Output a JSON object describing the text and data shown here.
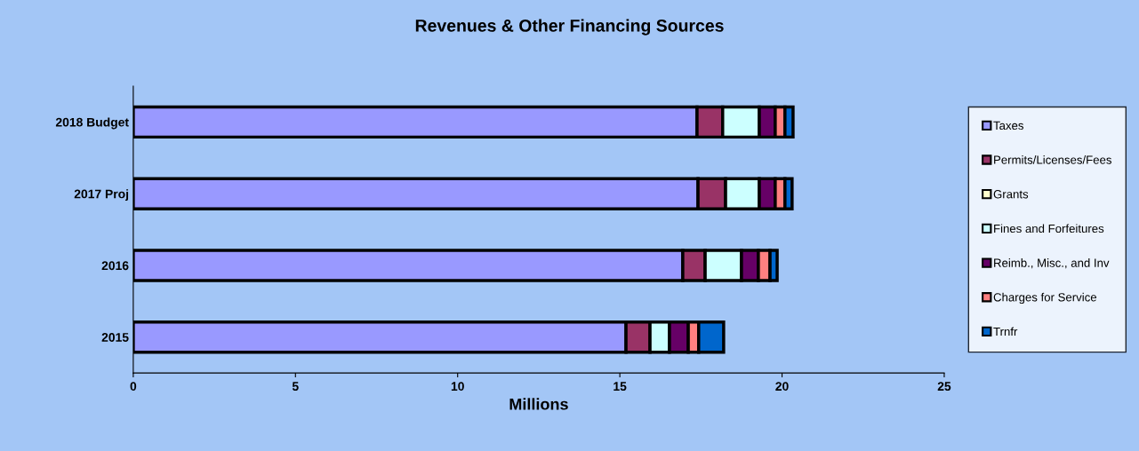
{
  "chart_data": {
    "type": "bar",
    "title": "Revenues & Other Financing Sources",
    "xlabel": "Millions",
    "orientation": "horizontal",
    "stacked": true,
    "categories": [
      "2018 Budget",
      "2017 Proj",
      "2016",
      "2015"
    ],
    "series": [
      {
        "name": "Taxes",
        "color": "#9999ff",
        "values": [
          17.38,
          17.41,
          16.94,
          15.19
        ]
      },
      {
        "name": "Permits/Licenses/Fees",
        "color": "#993366",
        "values": [
          0.79,
          0.85,
          0.69,
          0.74
        ]
      },
      {
        "name": "Grants",
        "color": "#ffffcc",
        "values": [
          0,
          0,
          0,
          0
        ]
      },
      {
        "name": "Fines and Forfeitures",
        "color": "#ccffff",
        "values": [
          1.13,
          1.04,
          1.12,
          0.6
        ]
      },
      {
        "name": "Reimb., Misc., and Inv",
        "color": "#660066",
        "values": [
          0.49,
          0.49,
          0.52,
          0.58
        ]
      },
      {
        "name": "Charges for Service",
        "color": "#ff8080",
        "values": [
          0.3,
          0.3,
          0.36,
          0.32
        ]
      },
      {
        "name": "Trnfr",
        "color": "#0066cc",
        "values": [
          0.25,
          0.22,
          0.22,
          0.77
        ]
      }
    ],
    "xlim": [
      0,
      25
    ],
    "xticks": [
      0,
      5,
      10,
      15,
      20,
      25
    ],
    "grid": false,
    "legend": "right"
  }
}
